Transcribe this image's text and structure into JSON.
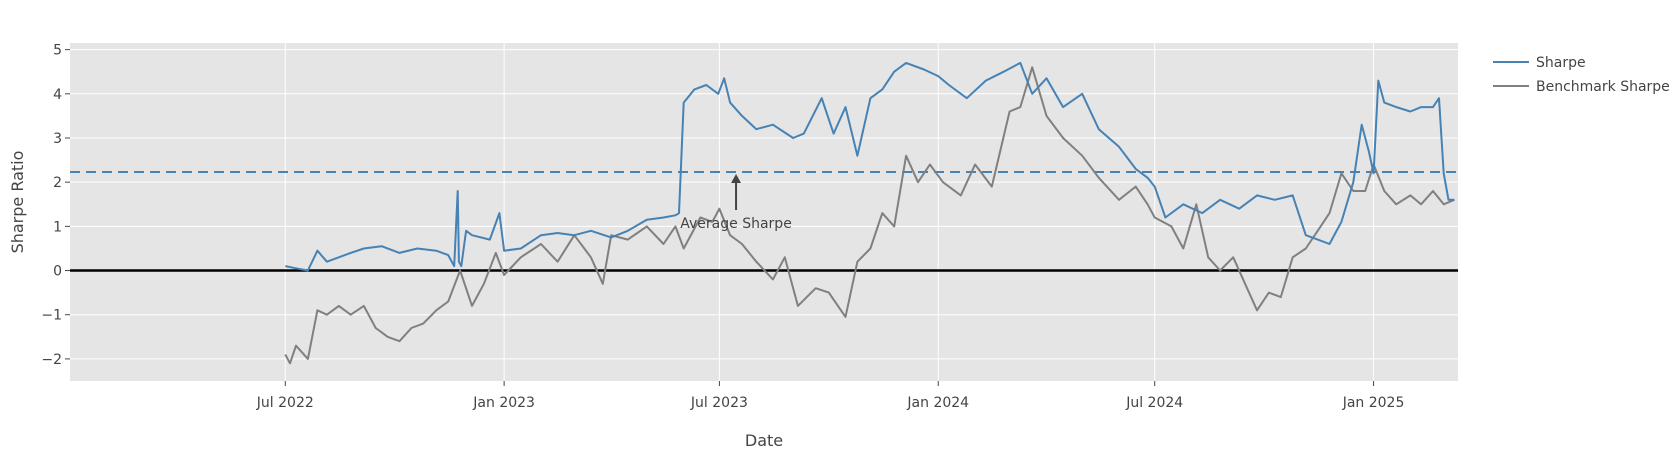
{
  "chart_data": {
    "type": "line",
    "title": "",
    "xlabel": "Date",
    "ylabel": "Sharpe Ratio",
    "xlim": [
      "2022-01-01",
      "2025-03-13"
    ],
    "ylim": [
      -2.5,
      5.15
    ],
    "x_ticks": [
      "2022-07-01",
      "2023-01-01",
      "2023-07-01",
      "2024-01-01",
      "2024-07-01",
      "2025-01-01"
    ],
    "x_tick_labels": [
      "Jul 2022",
      "Jan 2023",
      "Jul 2023",
      "Jan 2024",
      "Jul 2024",
      "Jan 2025"
    ],
    "y_ticks": [
      -2,
      -1,
      0,
      1,
      2,
      3,
      4,
      5
    ],
    "y_tick_labels": [
      "−2",
      "−1",
      "0",
      "1",
      "2",
      "3",
      "4",
      "5"
    ],
    "grid": true,
    "legend_position": "top-right",
    "reference_lines": [
      {
        "kind": "average",
        "y": 2.23,
        "style": "dashed",
        "color": "#4682b4"
      },
      {
        "kind": "zero",
        "y": 0,
        "style": "solid",
        "color": "#000000"
      }
    ],
    "annotations": [
      {
        "text": "Average Sharpe",
        "x": "2023-07-15",
        "y": 2.23,
        "arrow": true
      }
    ],
    "series": [
      {
        "name": "Sharpe",
        "color": "#4682b4",
        "x": [
          "2022-07-01",
          "2022-07-10",
          "2022-07-20",
          "2022-07-28",
          "2022-08-05",
          "2022-08-15",
          "2022-08-25",
          "2022-09-05",
          "2022-09-20",
          "2022-10-05",
          "2022-10-20",
          "2022-11-05",
          "2022-11-15",
          "2022-11-20",
          "2022-11-23",
          "2022-11-24",
          "2022-11-26",
          "2022-11-30",
          "2022-12-05",
          "2022-12-20",
          "2022-12-28",
          "2023-01-01",
          "2023-01-15",
          "2023-02-01",
          "2023-02-15",
          "2023-03-01",
          "2023-03-15",
          "2023-04-01",
          "2023-04-15",
          "2023-05-01",
          "2023-05-15",
          "2023-05-25",
          "2023-05-28",
          "2023-06-01",
          "2023-06-10",
          "2023-06-20",
          "2023-06-30",
          "2023-07-05",
          "2023-07-10",
          "2023-07-20",
          "2023-08-01",
          "2023-08-15",
          "2023-09-01",
          "2023-09-10",
          "2023-09-25",
          "2023-10-05",
          "2023-10-15",
          "2023-10-25",
          "2023-11-05",
          "2023-11-15",
          "2023-11-25",
          "2023-12-05",
          "2023-12-20",
          "2024-01-01",
          "2024-01-10",
          "2024-01-25",
          "2024-02-10",
          "2024-02-25",
          "2024-03-10",
          "2024-03-20",
          "2024-04-01",
          "2024-04-15",
          "2024-05-01",
          "2024-05-15",
          "2024-06-01",
          "2024-06-15",
          "2024-06-25",
          "2024-07-01",
          "2024-07-10",
          "2024-07-25",
          "2024-08-10",
          "2024-08-25",
          "2024-09-10",
          "2024-09-25",
          "2024-10-10",
          "2024-10-25",
          "2024-11-05",
          "2024-11-15",
          "2024-11-25",
          "2024-12-05",
          "2024-12-15",
          "2024-12-22",
          "2024-12-28",
          "2025-01-01",
          "2025-01-05",
          "2025-01-10",
          "2025-01-20",
          "2025-02-01",
          "2025-02-10",
          "2025-02-20",
          "2025-02-25",
          "2025-03-01",
          "2025-03-05",
          "2025-03-10"
        ],
        "y": [
          0.1,
          0.05,
          0.0,
          0.45,
          0.2,
          0.3,
          0.4,
          0.5,
          0.55,
          0.4,
          0.5,
          0.45,
          0.35,
          0.1,
          1.8,
          0.2,
          0.1,
          0.9,
          0.8,
          0.7,
          1.3,
          0.45,
          0.5,
          0.8,
          0.85,
          0.8,
          0.9,
          0.75,
          0.9,
          1.15,
          1.2,
          1.25,
          1.3,
          3.8,
          4.1,
          4.2,
          4.0,
          4.35,
          3.8,
          3.5,
          3.2,
          3.3,
          3.0,
          3.1,
          3.9,
          3.1,
          3.7,
          2.6,
          3.9,
          4.1,
          4.5,
          4.7,
          4.55,
          4.4,
          4.2,
          3.9,
          4.3,
          4.5,
          4.7,
          4.0,
          4.35,
          3.7,
          4.0,
          3.2,
          2.8,
          2.3,
          2.1,
          1.9,
          1.2,
          1.5,
          1.3,
          1.6,
          1.4,
          1.7,
          1.6,
          1.7,
          0.8,
          0.7,
          0.6,
          1.1,
          2.0,
          3.3,
          2.7,
          2.2,
          4.3,
          3.8,
          3.7,
          3.6,
          3.7,
          3.7,
          3.9,
          2.2,
          1.6,
          1.6
        ]
      },
      {
        "name": "Benchmark Sharpe",
        "color": "#808080",
        "x": [
          "2022-07-01",
          "2022-07-05",
          "2022-07-10",
          "2022-07-20",
          "2022-07-28",
          "2022-08-05",
          "2022-08-15",
          "2022-08-25",
          "2022-09-05",
          "2022-09-15",
          "2022-09-25",
          "2022-10-05",
          "2022-10-15",
          "2022-10-25",
          "2022-11-05",
          "2022-11-15",
          "2022-11-25",
          "2022-12-05",
          "2022-12-15",
          "2022-12-25",
          "2023-01-01",
          "2023-01-15",
          "2023-02-01",
          "2023-02-15",
          "2023-03-01",
          "2023-03-15",
          "2023-03-25",
          "2023-04-01",
          "2023-04-15",
          "2023-05-01",
          "2023-05-15",
          "2023-05-25",
          "2023-06-01",
          "2023-06-15",
          "2023-06-25",
          "2023-07-01",
          "2023-07-10",
          "2023-07-20",
          "2023-08-01",
          "2023-08-15",
          "2023-08-25",
          "2023-09-05",
          "2023-09-20",
          "2023-10-01",
          "2023-10-15",
          "2023-10-25",
          "2023-11-05",
          "2023-11-15",
          "2023-11-25",
          "2023-12-05",
          "2023-12-15",
          "2023-12-25",
          "2024-01-05",
          "2024-01-20",
          "2024-02-01",
          "2024-02-15",
          "2024-03-01",
          "2024-03-10",
          "2024-03-20",
          "2024-04-01",
          "2024-04-15",
          "2024-05-01",
          "2024-05-15",
          "2024-06-01",
          "2024-06-15",
          "2024-06-25",
          "2024-07-01",
          "2024-07-15",
          "2024-07-25",
          "2024-08-05",
          "2024-08-15",
          "2024-08-25",
          "2024-09-05",
          "2024-09-15",
          "2024-09-25",
          "2024-10-05",
          "2024-10-15",
          "2024-10-25",
          "2024-11-05",
          "2024-11-15",
          "2024-11-25",
          "2024-12-05",
          "2024-12-15",
          "2024-12-25",
          "2025-01-01",
          "2025-01-10",
          "2025-01-20",
          "2025-02-01",
          "2025-02-10",
          "2025-02-20",
          "2025-03-01",
          "2025-03-10"
        ],
        "y": [
          -1.9,
          -2.1,
          -1.7,
          -2.0,
          -0.9,
          -1.0,
          -0.8,
          -1.0,
          -0.8,
          -1.3,
          -1.5,
          -1.6,
          -1.3,
          -1.2,
          -0.9,
          -0.7,
          0.0,
          -0.8,
          -0.3,
          0.4,
          -0.1,
          0.3,
          0.6,
          0.2,
          0.8,
          0.3,
          -0.3,
          0.8,
          0.7,
          1.0,
          0.6,
          1.0,
          0.5,
          1.2,
          1.1,
          1.4,
          0.8,
          0.6,
          0.2,
          -0.2,
          0.3,
          -0.8,
          -0.4,
          -0.5,
          -1.05,
          0.2,
          0.5,
          1.3,
          1.0,
          2.6,
          2.0,
          2.4,
          2.0,
          1.7,
          2.4,
          1.9,
          3.6,
          3.7,
          4.6,
          3.5,
          3.0,
          2.6,
          2.1,
          1.6,
          1.9,
          1.5,
          1.2,
          1.0,
          0.5,
          1.5,
          0.3,
          0.0,
          0.3,
          -0.3,
          -0.9,
          -0.5,
          -0.6,
          0.3,
          0.5,
          0.9,
          1.3,
          2.2,
          1.8,
          1.8,
          2.4,
          1.8,
          1.5,
          1.7,
          1.5,
          1.8,
          1.5,
          1.6
        ]
      }
    ]
  }
}
